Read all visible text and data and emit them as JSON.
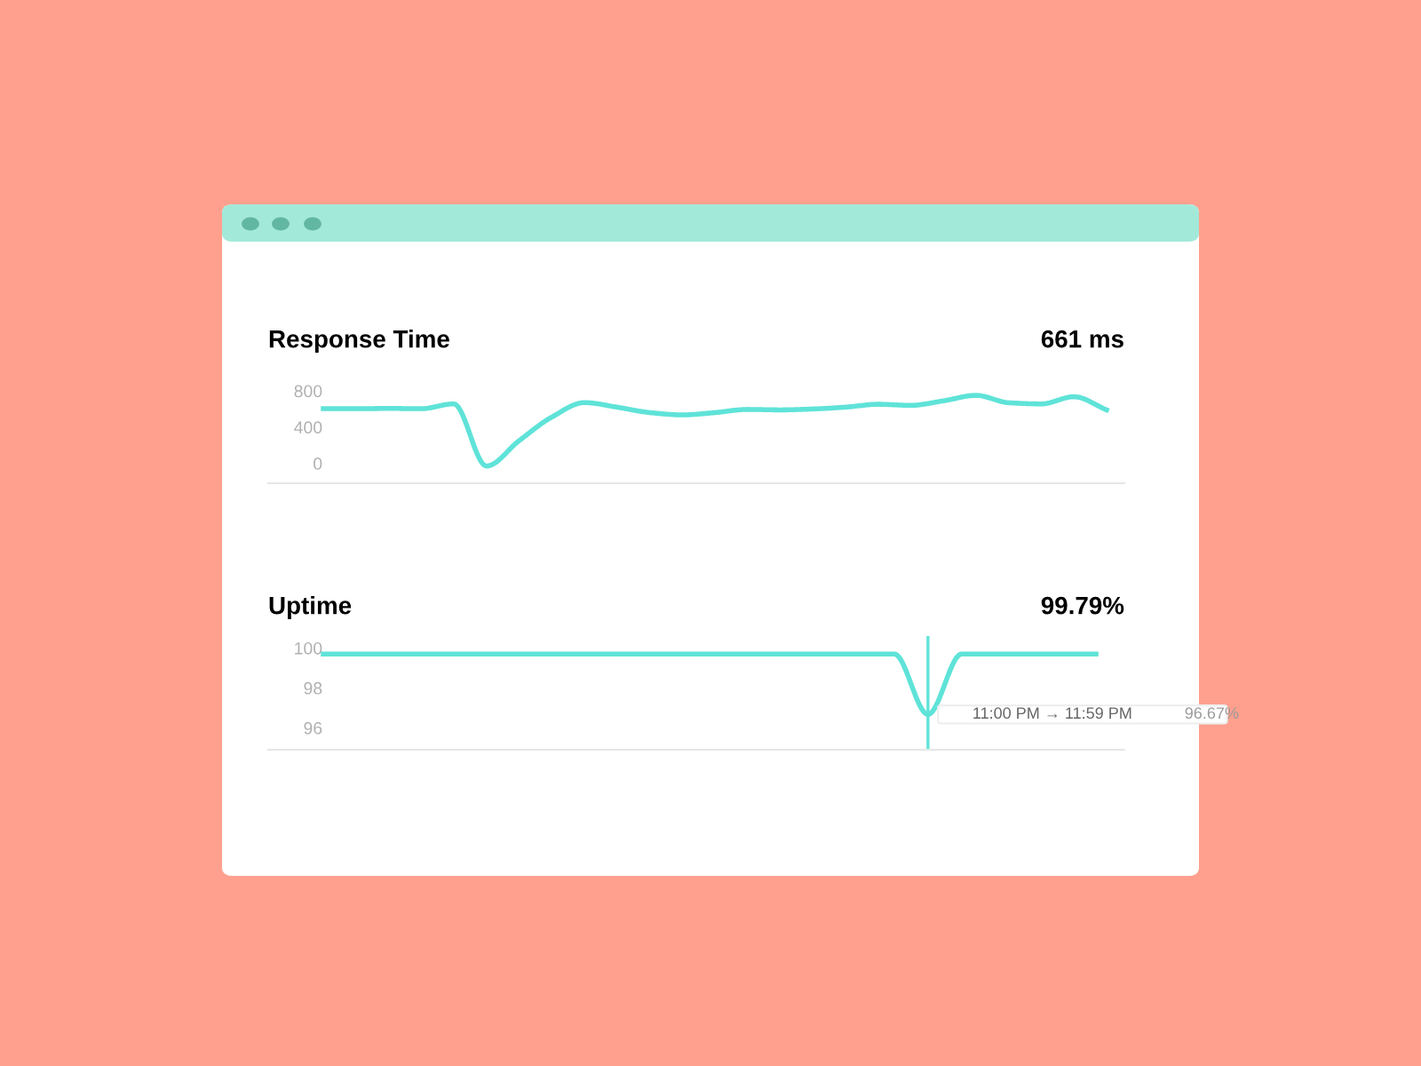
{
  "chart_data": [
    {
      "type": "line",
      "title": "Response Time",
      "annotations": [
        "661 ms"
      ],
      "marker": "none",
      "categories": [
        null,
        null,
        null,
        null,
        null,
        null,
        null,
        null,
        null,
        null,
        null,
        null,
        null,
        null,
        null,
        null,
        null,
        null,
        null,
        null,
        null,
        null,
        null,
        null,
        null
      ],
      "series": [
        {
          "color": "#5fe3d8",
          "values": [
            603,
            603,
            606,
            603,
            656,
            -30,
            250,
            510,
            670,
            620,
            560,
            535,
            560,
            595,
            590,
            600,
            620,
            652,
            640,
            690,
            750,
            669,
            656,
            735,
            590
          ]
        }
      ],
      "ylim": [
        -220,
        800
      ],
      "yticks": [
        0,
        400,
        800
      ],
      "grid": false,
      "line_style": "solid",
      "tick_labels": "y"
    },
    {
      "type": "line",
      "title": "Uptime",
      "annotations": [
        "99.79%",
        "11:00 PM → 11:59 PM",
        "96.67%"
      ],
      "categories": [
        null,
        null,
        null,
        null,
        null,
        null,
        null,
        null,
        null,
        null,
        null,
        null,
        null,
        null,
        null,
        null,
        null,
        null,
        null,
        null,
        null,
        null,
        null,
        null
      ],
      "series": [
        {
          "color": "#5fe3d8",
          "values": [
            99.7,
            99.7,
            99.7,
            99.7,
            99.7,
            99.7,
            99.7,
            99.7,
            99.7,
            99.7,
            99.7,
            99.7,
            99.7,
            99.7,
            99.7,
            99.7,
            99.7,
            99.7,
            96.67,
            99.7,
            99.7,
            99.7,
            99.7,
            99.7
          ]
        }
      ],
      "ylim": [
        94.9,
        100.6
      ],
      "yticks": [
        96,
        98,
        100
      ],
      "grid": false,
      "marker": "none",
      "line_style": "solid",
      "tick_labels": "y"
    }
  ]
}
